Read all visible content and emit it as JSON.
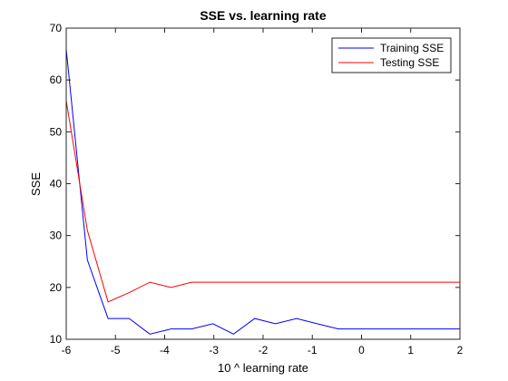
{
  "chart_data": {
    "type": "line",
    "title": "SSE vs. learning rate",
    "xlabel": "10 ^ learning rate",
    "ylabel": "SSE",
    "xlim": [
      -6,
      2
    ],
    "ylim": [
      10,
      70
    ],
    "xticks": [
      -6,
      -5,
      -4,
      -3,
      -2,
      -1,
      0,
      1,
      2
    ],
    "yticks": [
      10,
      20,
      30,
      40,
      50,
      60,
      70
    ],
    "grid": false,
    "legend_position": "top-right",
    "series": [
      {
        "name": "Training SSE",
        "color": "#0000ff",
        "x": [
          -6,
          -5.57,
          -5.15,
          -4.72,
          -4.3,
          -3.87,
          -3.45,
          -3.02,
          -2.6,
          -2.17,
          -1.75,
          -1.32,
          -0.9,
          -0.47,
          -0.05,
          0.38,
          0.8,
          1.23,
          1.65,
          2
        ],
        "y": [
          66,
          25.3,
          14,
          14,
          11,
          12,
          12,
          13,
          11,
          14,
          13,
          14,
          13,
          12,
          12,
          12,
          12,
          12,
          12,
          12
        ]
      },
      {
        "name": "Testing SSE",
        "color": "#ff0000",
        "x": [
          -6,
          -5.57,
          -5.15,
          -4.72,
          -4.3,
          -3.87,
          -3.45,
          -3.02,
          -2.6,
          -2.17,
          -1.75,
          -1.32,
          -0.9,
          -0.47,
          -0.05,
          0.38,
          0.8,
          1.23,
          1.65,
          2
        ],
        "y": [
          56,
          31,
          17.2,
          19,
          21,
          20,
          21,
          21,
          21,
          21,
          21,
          21,
          21,
          21,
          21,
          21,
          21,
          21,
          21,
          21
        ]
      }
    ]
  }
}
